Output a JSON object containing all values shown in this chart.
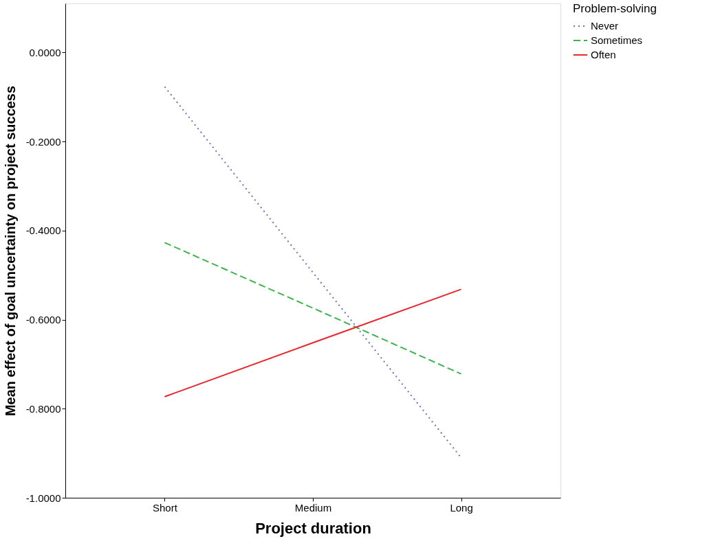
{
  "chart_data": {
    "type": "line",
    "xlabel": "Project duration",
    "ylabel": "Mean effect of goal uncertainty on project success",
    "legend_title": "Problem-solving",
    "categories": [
      "Short",
      "Medium",
      "Long"
    ],
    "series": [
      {
        "name": "Never",
        "color": "#6b6fb5",
        "line_style": "dotted",
        "values": [
          -0.077,
          -0.494,
          -0.91
        ]
      },
      {
        "name": "Sometimes",
        "color": "#3cb44a",
        "line_style": "dashed",
        "values": [
          -0.427,
          -0.574,
          -0.722
        ]
      },
      {
        "name": "Often",
        "color": "#e8262b",
        "line_style": "solid",
        "values": [
          -0.773,
          -0.652,
          -0.532
        ]
      }
    ],
    "ylim": [
      -1.0,
      0.11
    ],
    "yticks": [
      {
        "value": -1.0,
        "label": "-1.0000"
      },
      {
        "value": -0.8,
        "label": "-0.8000"
      },
      {
        "value": -0.6,
        "label": "-0.6000"
      },
      {
        "value": -0.4,
        "label": "-0.4000"
      },
      {
        "value": -0.2,
        "label": "-0.2000"
      },
      {
        "value": 0.0,
        "label": "0.0000"
      }
    ],
    "grid": false,
    "legend": "top right",
    "marker": "none"
  }
}
